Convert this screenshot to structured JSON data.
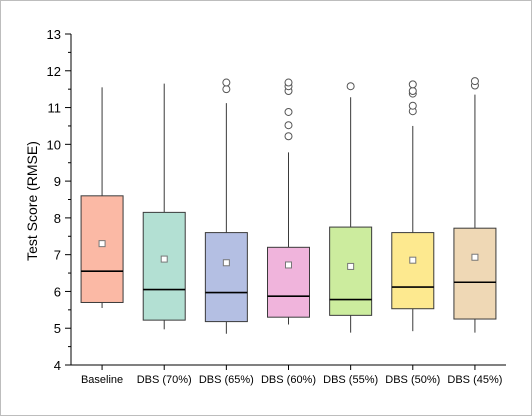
{
  "chart_data": {
    "type": "box",
    "ylabel": "Test Score (RMSE)",
    "ylim": [
      4,
      13
    ],
    "yticks": [
      4,
      5,
      6,
      7,
      8,
      9,
      10,
      11,
      12,
      13
    ],
    "grid": false,
    "categories": [
      "Baseline",
      "DBS (70%)",
      "DBS (65%)",
      "DBS (60%)",
      "DBS (55%)",
      "DBS (50%)",
      "DBS (45%)"
    ],
    "boxes": [
      {
        "name": "Baseline",
        "whisker_low": 5.55,
        "q1": 5.7,
        "median": 6.55,
        "q3": 8.6,
        "whisker_high": 11.55,
        "mean": 7.3,
        "outliers": [],
        "color": "#fbb9a5"
      },
      {
        "name": "DBS (70%)",
        "whisker_low": 4.97,
        "q1": 5.22,
        "median": 6.05,
        "q3": 8.15,
        "whisker_high": 11.65,
        "mean": 6.88,
        "outliers": [],
        "color": "#b3e0d3"
      },
      {
        "name": "DBS (65%)",
        "whisker_low": 4.85,
        "q1": 5.18,
        "median": 5.97,
        "q3": 7.6,
        "whisker_high": 11.12,
        "mean": 6.78,
        "outliers": [
          11.5,
          11.68
        ],
        "color": "#b4bfe3"
      },
      {
        "name": "DBS (60%)",
        "whisker_low": 5.1,
        "q1": 5.3,
        "median": 5.87,
        "q3": 7.2,
        "whisker_high": 9.78,
        "mean": 6.72,
        "outliers": [
          10.22,
          10.52,
          10.88,
          11.45,
          11.58,
          11.68
        ],
        "color": "#f0b4dc"
      },
      {
        "name": "DBS (55%)",
        "whisker_low": 4.88,
        "q1": 5.35,
        "median": 5.78,
        "q3": 7.75,
        "whisker_high": 11.28,
        "mean": 6.68,
        "outliers": [
          11.58
        ],
        "color": "#ccec9e"
      },
      {
        "name": "DBS (50%)",
        "whisker_low": 4.92,
        "q1": 5.53,
        "median": 6.12,
        "q3": 7.6,
        "whisker_high": 10.5,
        "mean": 6.85,
        "outliers": [
          10.9,
          11.05,
          11.38,
          11.45,
          11.63
        ],
        "color": "#fde98f"
      },
      {
        "name": "DBS (45%)",
        "whisker_low": 4.88,
        "q1": 5.25,
        "median": 6.25,
        "q3": 7.72,
        "whisker_high": 11.35,
        "mean": 6.93,
        "outliers": [
          11.6,
          11.72
        ],
        "color": "#efd8b5"
      }
    ],
    "colors": {
      "box_stroke": "#3a3a3a",
      "median": "#000000",
      "whisker": "#3a3a3a",
      "axis": "#000000",
      "mean_marker_fill": "#ffffff",
      "mean_marker_stroke": "#777777",
      "outlier_stroke": "#555555"
    }
  }
}
